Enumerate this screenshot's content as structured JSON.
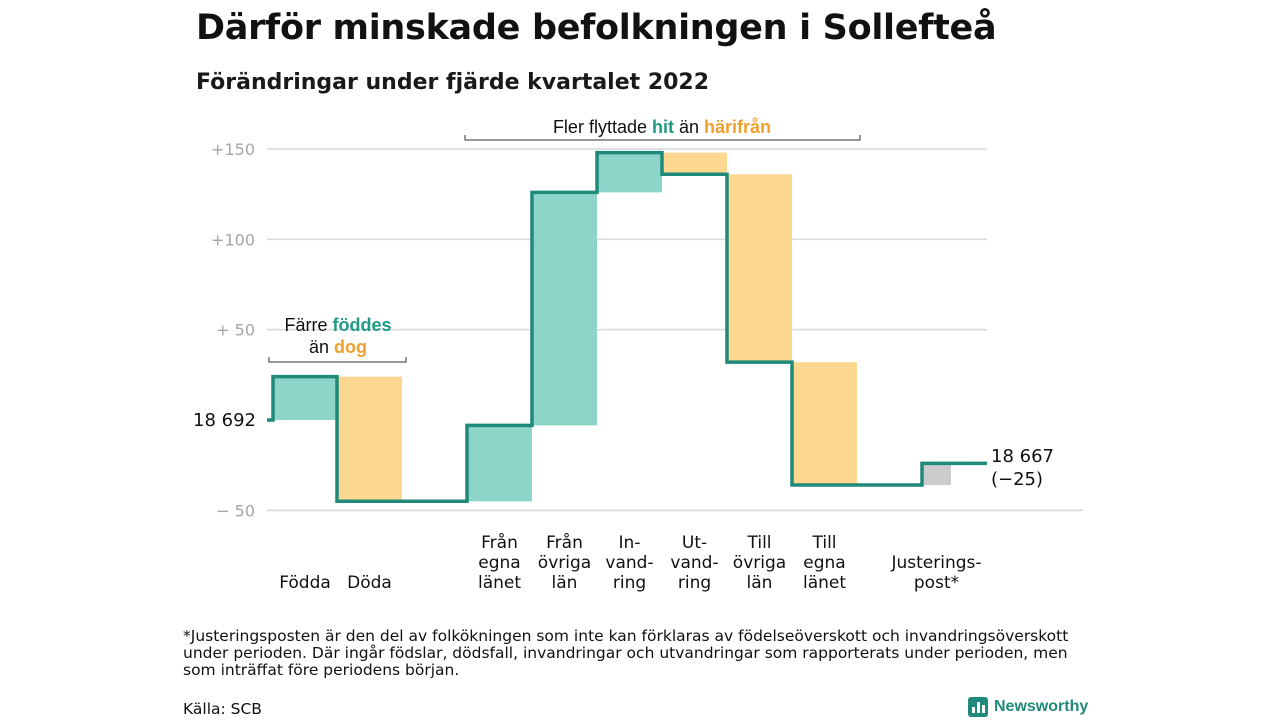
{
  "header": {
    "title": "Därför minskade befolkningen i Sollefteå",
    "subtitle": "Förändringar under fjärde kvartalet 2022"
  },
  "chart_data": {
    "type": "waterfall",
    "start_value": 18692,
    "start_label": "18 692",
    "end_label_1": "18 667",
    "end_label_2": "(−25)",
    "ylim": [
      -55,
      150
    ],
    "y_ticks": [
      {
        "value": 150,
        "label": "+150"
      },
      {
        "value": 100,
        "label": "+100"
      },
      {
        "value": 50,
        "label": "+ 50"
      },
      {
        "value": -50,
        "label": "− 50"
      }
    ],
    "steps": [
      {
        "label_lines": [
          "Födda"
        ],
        "delta": 24,
        "kind": "in"
      },
      {
        "label_lines": [
          "Döda"
        ],
        "delta": -69,
        "kind": "out"
      },
      {
        "label_lines": [
          "Från",
          "egna",
          "länet"
        ],
        "delta": 42,
        "kind": "in"
      },
      {
        "label_lines": [
          "Från",
          "övriga",
          "län"
        ],
        "delta": 129,
        "kind": "in"
      },
      {
        "label_lines": [
          "In-",
          "vand-",
          "ring"
        ],
        "delta": 22,
        "kind": "in"
      },
      {
        "label_lines": [
          "Ut-",
          "vand-",
          "ring"
        ],
        "delta": -12,
        "kind": "out"
      },
      {
        "label_lines": [
          "Till",
          "övriga",
          "län"
        ],
        "delta": -104,
        "kind": "out"
      },
      {
        "label_lines": [
          "Till",
          "egna",
          "länet"
        ],
        "delta": -68,
        "kind": "out"
      },
      {
        "label_lines": [
          "Justerings-",
          "post*"
        ],
        "delta": 12,
        "kind": "adj"
      }
    ],
    "annotations": {
      "births": {
        "line1": "Färre ",
        "line1_hl": "föddes",
        "line2": "än ",
        "line2_hl": "dog"
      },
      "migration": {
        "pre": "Fler flyttade ",
        "hl1": "hit",
        "mid": " än ",
        "hl2": "härifrån"
      }
    },
    "colors": {
      "in_fill": "#8dd5c9",
      "out_fill": "#fbd78f",
      "adj_fill": "#cccccc",
      "line": "#1f8a7a",
      "teal_text": "#1f9a86",
      "orange_text": "#f0a02c",
      "grid": "#d9d9d9",
      "tick_text": "#a6a6a6"
    }
  },
  "footnote": "*Justeringsposten är den del av folkökningen som inte kan förklaras av födelseöverskott och invandringsöverskott under perioden. Där ingår födslar, dödsfall, invandringar och utvandringar som rapporterats under perioden, men som inträffat före periodens början.",
  "source": "Källa: SCB",
  "brand": {
    "name": "Newsworthy",
    "icon": "bar-chart-icon"
  }
}
